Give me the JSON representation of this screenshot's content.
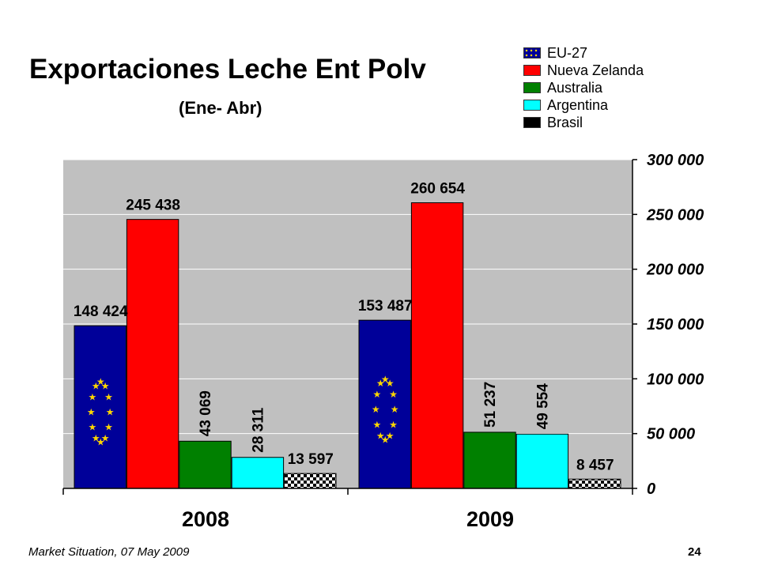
{
  "chart_data": {
    "type": "bar",
    "title": "Exportaciones Leche Ent Polv",
    "subtitle": "(Ene- Abr)",
    "categories": [
      "2008",
      "2009"
    ],
    "series": [
      {
        "name": "EU-27",
        "color": "#000099",
        "values": [
          148424,
          153487
        ],
        "labels": [
          "148 424",
          "153 487"
        ]
      },
      {
        "name": "Nueva Zelanda",
        "color": "#ff0000",
        "values": [
          245438,
          260654
        ],
        "labels": [
          "245 438",
          "260 654"
        ]
      },
      {
        "name": "Australia",
        "color": "#008000",
        "values": [
          43069,
          51237
        ],
        "labels": [
          "43 069",
          "51 237"
        ]
      },
      {
        "name": "Argentina",
        "color": "#00ffff",
        "values": [
          28311,
          49554
        ],
        "labels": [
          "28 311",
          "49 554"
        ]
      },
      {
        "name": "Brasil",
        "color": "#000000",
        "values": [
          13597,
          8457
        ],
        "labels": [
          "13 597",
          "8 457"
        ]
      }
    ],
    "ylim": [
      0,
      300000
    ],
    "yticks": [
      0,
      50000,
      100000,
      150000,
      200000,
      250000,
      300000
    ],
    "ytick_labels": [
      "0",
      "50 000",
      "100 000",
      "150 000",
      "200 000",
      "250 000",
      "300 000"
    ],
    "y_axis_side": "right",
    "grid": true,
    "legend_position": "top-right"
  },
  "footer": {
    "text": "Market Situation, 07 May 2009",
    "page_number": "24"
  }
}
